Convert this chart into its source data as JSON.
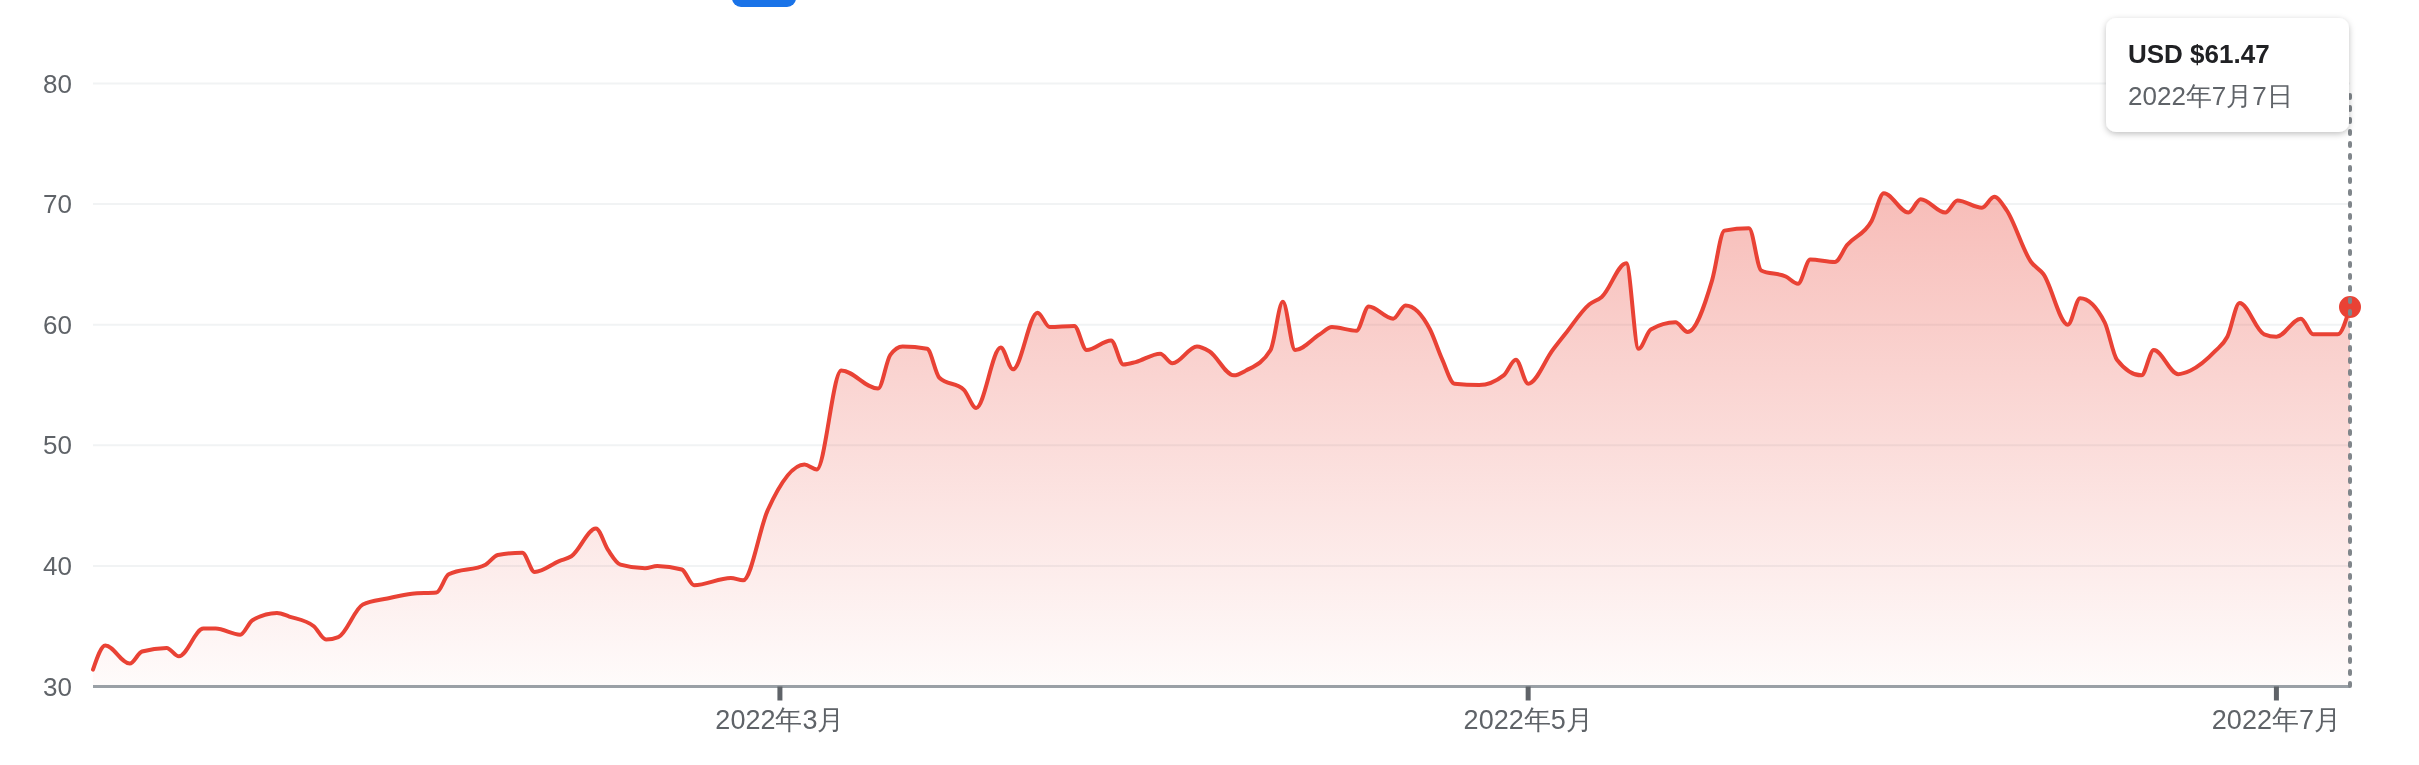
{
  "chart_data": {
    "type": "area",
    "color": "#e94235",
    "x": [
      "2022-01-04",
      "2022-01-05",
      "2022-01-07",
      "2022-01-08",
      "2022-01-10",
      "2022-01-11",
      "2022-01-13",
      "2022-01-14",
      "2022-01-16",
      "2022-01-17",
      "2022-01-19",
      "2022-01-20",
      "2022-01-22",
      "2022-01-23",
      "2022-01-24",
      "2022-01-26",
      "2022-01-28",
      "2022-01-30",
      "2022-02-01",
      "2022-02-02",
      "2022-02-05",
      "2022-02-06",
      "2022-02-08",
      "2022-02-09",
      "2022-02-11",
      "2022-02-12",
      "2022-02-14",
      "2022-02-15",
      "2022-02-16",
      "2022-02-18",
      "2022-02-19",
      "2022-02-21",
      "2022-02-22",
      "2022-02-25",
      "2022-02-26",
      "2022-02-28",
      "2022-03-03",
      "2022-03-04",
      "2022-03-06",
      "2022-03-09",
      "2022-03-10",
      "2022-03-11",
      "2022-03-13",
      "2022-03-14",
      "2022-03-16",
      "2022-03-17",
      "2022-03-19",
      "2022-03-20",
      "2022-03-22",
      "2022-03-23",
      "2022-03-25",
      "2022-03-26",
      "2022-03-28",
      "2022-03-29",
      "2022-03-30",
      "2022-04-01",
      "2022-04-02",
      "2022-04-04",
      "2022-04-05",
      "2022-04-07",
      "2022-04-08",
      "2022-04-10",
      "2022-04-11",
      "2022-04-12",
      "2022-04-14",
      "2022-04-15",
      "2022-04-17",
      "2022-04-18",
      "2022-04-20",
      "2022-04-21",
      "2022-04-23",
      "2022-04-24",
      "2022-04-25",
      "2022-04-27",
      "2022-04-29",
      "2022-04-30",
      "2022-05-01",
      "2022-05-03",
      "2022-05-04",
      "2022-05-06",
      "2022-05-07",
      "2022-05-09",
      "2022-05-10",
      "2022-05-11",
      "2022-05-13",
      "2022-05-14",
      "2022-05-16",
      "2022-05-17",
      "2022-05-19",
      "2022-05-20",
      "2022-05-22",
      "2022-05-23",
      "2022-05-24",
      "2022-05-26",
      "2022-05-27",
      "2022-05-29",
      "2022-05-30",
      "2022-06-01",
      "2022-06-02",
      "2022-06-04",
      "2022-06-05",
      "2022-06-07",
      "2022-06-08",
      "2022-06-09",
      "2022-06-11",
      "2022-06-12",
      "2022-06-14",
      "2022-06-15",
      "2022-06-17",
      "2022-06-18",
      "2022-06-20",
      "2022-06-21",
      "2022-06-23",
      "2022-06-24",
      "2022-06-26",
      "2022-06-27",
      "2022-06-28",
      "2022-06-30",
      "2022-07-01",
      "2022-07-03",
      "2022-07-04",
      "2022-07-06",
      "2022-07-07"
    ],
    "values": [
      31.4,
      33.4,
      31.9,
      32.9,
      33.2,
      32.5,
      34.8,
      34.8,
      34.3,
      35.5,
      36.1,
      35.8,
      35.0,
      33.9,
      34.1,
      36.8,
      37.3,
      37.7,
      37.8,
      39.3,
      40.1,
      40.9,
      41.1,
      39.5,
      40.4,
      40.8,
      43.1,
      41.3,
      40.1,
      39.8,
      40.0,
      39.7,
      38.4,
      39.0,
      38.8,
      44.6,
      48.4,
      48.0,
      56.2,
      54.7,
      57.5,
      58.2,
      58.0,
      55.6,
      54.6,
      53.1,
      58.1,
      56.3,
      61.0,
      59.8,
      59.9,
      57.9,
      58.7,
      56.7,
      56.9,
      57.6,
      56.8,
      58.2,
      57.8,
      55.8,
      56.2,
      57.9,
      61.9,
      57.9,
      59.2,
      59.8,
      59.5,
      61.5,
      60.5,
      61.6,
      59.6,
      57.1,
      55.1,
      55.0,
      55.8,
      57.1,
      55.1,
      57.9,
      59.2,
      61.7,
      62.3,
      65.1,
      58.0,
      59.6,
      60.2,
      59.4,
      63.7,
      67.8,
      68.0,
      64.5,
      64.0,
      63.4,
      65.4,
      65.2,
      66.6,
      68.6,
      70.9,
      69.3,
      70.4,
      69.3,
      70.3,
      69.7,
      70.6,
      69.5,
      65.2,
      64.2,
      60.0,
      62.2,
      60.2,
      57.1,
      55.8,
      57.9,
      55.9,
      56.2,
      57.8,
      59.0,
      61.8,
      59.2,
      59.0,
      60.5,
      59.2,
      59.2,
      61.47
    ],
    "xlim": [
      "2022-01-04",
      "2022-07-07"
    ],
    "xticks": [
      {
        "value": "2022-03-01",
        "label": "2022年3月"
      },
      {
        "value": "2022-05-01",
        "label": "2022年5月"
      },
      {
        "value": "2022-07-01",
        "label": "2022年7月"
      }
    ],
    "ylim": [
      30,
      80
    ],
    "yticks": [
      30,
      40,
      50,
      60,
      70,
      80
    ],
    "grid": "y",
    "ref_lines": [
      {
        "axis": "x",
        "value": "2022-07-07",
        "color": "#80868b",
        "line_style": "dotted"
      }
    ],
    "annotations": [
      "USD $61.47",
      "2022年7月7日"
    ]
  }
}
